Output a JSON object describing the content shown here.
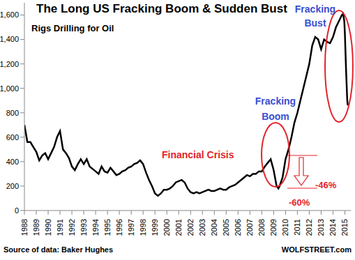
{
  "chart_data": {
    "type": "line",
    "title": "The Long US Fracking Boom & Sudden Bust",
    "subtitle": "Rigs Drilling for Oil",
    "source": "Source of data: Baker Hughes",
    "credit": "WOLFSTREET.com",
    "annotations": [
      {
        "text": "Fracking Bust",
        "color": "#3a4fd0"
      },
      {
        "text": "Fracking Boom",
        "color": "#3a4fd0"
      },
      {
        "text": "Financial Crisis",
        "color": "#e3242b"
      },
      {
        "text": "-60%",
        "color": "#e3242b"
      },
      {
        "text": "-46%",
        "color": "#e3242b"
      }
    ],
    "grid": false,
    "x": [
      1988.0,
      1988.25,
      1988.5,
      1988.75,
      1989.0,
      1989.25,
      1989.5,
      1989.75,
      1990.0,
      1990.25,
      1990.5,
      1990.75,
      1991.0,
      1991.25,
      1991.5,
      1991.75,
      1992.0,
      1992.25,
      1992.5,
      1992.75,
      1993.0,
      1993.25,
      1993.5,
      1993.75,
      1994.0,
      1994.25,
      1994.5,
      1994.75,
      1995.0,
      1995.25,
      1995.5,
      1995.75,
      1996.0,
      1996.25,
      1996.5,
      1996.75,
      1997.0,
      1997.25,
      1997.5,
      1997.75,
      1998.0,
      1998.25,
      1998.5,
      1998.75,
      1999.0,
      1999.25,
      1999.5,
      1999.75,
      2000.0,
      2000.25,
      2000.5,
      2000.75,
      2001.0,
      2001.25,
      2001.5,
      2001.75,
      2002.0,
      2002.25,
      2002.5,
      2002.75,
      2003.0,
      2003.25,
      2003.5,
      2003.75,
      2004.0,
      2004.25,
      2004.5,
      2004.75,
      2005.0,
      2005.25,
      2005.5,
      2005.75,
      2006.0,
      2006.25,
      2006.5,
      2006.75,
      2007.0,
      2007.25,
      2007.5,
      2007.75,
      2008.0,
      2008.25,
      2008.5,
      2008.75,
      2009.0,
      2009.25,
      2009.4,
      2009.5,
      2009.75,
      2010.0,
      2010.25,
      2010.5,
      2010.75,
      2011.0,
      2011.25,
      2011.5,
      2011.75,
      2012.0,
      2012.25,
      2012.5,
      2012.75,
      2013.0,
      2013.25,
      2013.5,
      2013.75,
      2014.0,
      2014.25,
      2014.5,
      2014.75,
      2014.85,
      2014.95,
      2015.0,
      2015.1,
      2015.2,
      2015.25
    ],
    "series": [
      {
        "name": "Rigs Drilling for Oil",
        "color": "#000000",
        "values": [
          700,
          560,
          560,
          520,
          480,
          410,
          450,
          470,
          420,
          470,
          520,
          600,
          650,
          500,
          470,
          430,
          360,
          330,
          380,
          420,
          380,
          420,
          360,
          340,
          320,
          300,
          360,
          320,
          310,
          350,
          320,
          290,
          300,
          320,
          330,
          350,
          360,
          380,
          390,
          410,
          380,
          310,
          250,
          200,
          140,
          120,
          140,
          170,
          170,
          180,
          200,
          230,
          240,
          250,
          230,
          180,
          150,
          140,
          150,
          140,
          150,
          160,
          170,
          160,
          160,
          170,
          180,
          170,
          170,
          190,
          200,
          210,
          230,
          250,
          270,
          290,
          280,
          300,
          300,
          320,
          320,
          360,
          390,
          420,
          330,
          200,
          180,
          200,
          270,
          420,
          500,
          600,
          720,
          800,
          900,
          1000,
          1100,
          1200,
          1350,
          1420,
          1400,
          1320,
          1400,
          1380,
          1370,
          1420,
          1500,
          1550,
          1600,
          1610,
          1550,
          1450,
          1150,
          900,
          860
        ]
      }
    ],
    "xlim": [
      1988,
      2015.5
    ],
    "xticks": [
      1988,
      1989,
      1990,
      1991,
      1992,
      1993,
      1994,
      1995,
      1996,
      1997,
      1998,
      1999,
      2000,
      2001,
      2002,
      2003,
      2004,
      2005,
      2006,
      2007,
      2008,
      2009,
      2010,
      2011,
      2012,
      2013,
      2014,
      2015
    ],
    "ylim": [
      0,
      1700
    ],
    "yticks": [
      0,
      200,
      400,
      600,
      800,
      {
        "value": 1000,
        "label": "1,000"
      },
      {
        "value": 1200,
        "label": "1,200"
      },
      {
        "value": 1400,
        "label": "1,400"
      },
      {
        "value": 1600,
        "label": "1,600"
      }
    ]
  }
}
